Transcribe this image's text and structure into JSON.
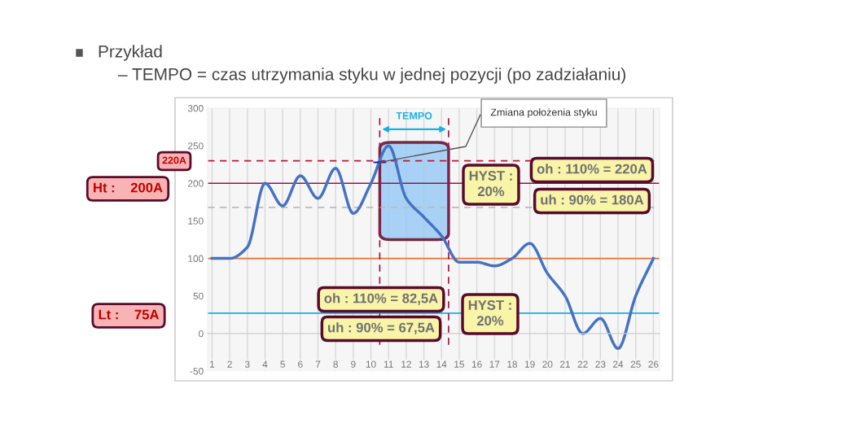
{
  "chart_data": {
    "type": "line",
    "title": "Przykład",
    "subtitle": "– TEMPO = czas utrzymania styku w jednej pozycji (po zadziałaniu)",
    "x": [
      1,
      2,
      3,
      4,
      5,
      6,
      7,
      8,
      9,
      10,
      11,
      12,
      13,
      14,
      15,
      16,
      17,
      18,
      19,
      20,
      21,
      22,
      23,
      24,
      25,
      26
    ],
    "series": [
      {
        "color": "#4472c4",
        "values": [
          100,
          100,
          115,
          200,
          170,
          210,
          180,
          220,
          160,
          200,
          250,
          180,
          155,
          130,
          95,
          95,
          90,
          100,
          120,
          80,
          50,
          0,
          20,
          -20,
          50,
          100
        ]
      }
    ],
    "xlim": [
      0.75,
      26.35
    ],
    "xticks": [
      1,
      2,
      3,
      4,
      5,
      6,
      7,
      8,
      9,
      10,
      11,
      12,
      13,
      14,
      15,
      16,
      17,
      18,
      19,
      20,
      21,
      22,
      23,
      24,
      25,
      26
    ],
    "ylim": [
      -50,
      300
    ],
    "yticks": [
      -50,
      0,
      50,
      100,
      150,
      200,
      250,
      300
    ],
    "grid": "x",
    "marker": "none",
    "line_style": "solid",
    "legend": false,
    "ref_lines": [
      {
        "axis": "y",
        "value": 230,
        "label": null,
        "color": "#c0143c",
        "line_style": "dashed"
      },
      {
        "axis": "y",
        "value": 200,
        "label": null,
        "color": "#8b1a4a",
        "line_style": "solid"
      },
      {
        "axis": "y",
        "value": 168,
        "label": null,
        "color": "#bbbbbb",
        "line_style": "dashed"
      },
      {
        "axis": "y",
        "value": 100,
        "label": null,
        "color": "#f07030",
        "line_style": "solid"
      },
      {
        "axis": "y",
        "value": 27,
        "label": null,
        "color": "#1ab0e8",
        "line_style": "solid"
      },
      {
        "axis": "x",
        "value": 10.5,
        "label": null,
        "color": "#a0104a",
        "line_style": "dashed"
      },
      {
        "axis": "x",
        "value": 14.4,
        "label": null,
        "color": "#a0104a",
        "line_style": "dashed"
      }
    ],
    "bands": [
      {
        "axis": "x",
        "from": 10.5,
        "to": 14.4,
        "label": "TEMPO",
        "color": "#9ccbf5"
      }
    ],
    "annotations": [
      {
        "text": "Zmiana położenia styku",
        "x": 10.5,
        "y": 228
      },
      "HYST :\n20%",
      "oh : 110% = 220A",
      "uh : 90% = 180A",
      "oh : 110% = 82,5A",
      "uh : 90% = 67,5A",
      "HYST :\n20%",
      "220A",
      "Ht :    200A",
      "Lt :    75A"
    ]
  }
}
